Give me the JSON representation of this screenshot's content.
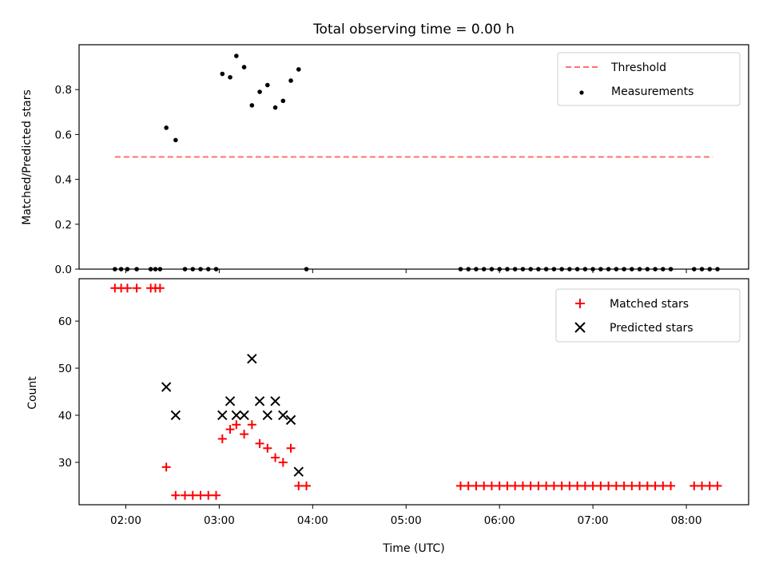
{
  "title": "Total observing time = 0.00 h",
  "xlabel": "Time (UTC)",
  "x_ticks": [
    "02:00",
    "03:00",
    "04:00",
    "05:00",
    "06:00",
    "07:00",
    "08:00"
  ],
  "chart_data": [
    {
      "type": "scatter",
      "panel": "top",
      "ylabel": "Matched/Predicted stars",
      "ylim": [
        0,
        1.0
      ],
      "y_ticks": [
        "0.0",
        "0.2",
        "0.4",
        "0.6",
        "0.8"
      ],
      "x_range": [
        "01:30",
        "08:40"
      ],
      "legend": {
        "placement": "top-right",
        "entries": [
          "Threshold",
          "Measurements"
        ]
      },
      "threshold": {
        "name": "Threshold",
        "x": [
          "01:53",
          "08:17"
        ],
        "y": 0.5,
        "color": "#ff7070",
        "style": "dashed"
      },
      "series": [
        {
          "name": "Measurements",
          "color": "#000000",
          "points": [
            [
              "01:53",
              0
            ],
            [
              "01:57",
              0
            ],
            [
              "02:01",
              0
            ],
            [
              "02:07",
              0
            ],
            [
              "02:16",
              0
            ],
            [
              "02:19",
              0
            ],
            [
              "02:22",
              0
            ],
            [
              "02:26",
              0.63
            ],
            [
              "02:32",
              0.575
            ],
            [
              "02:38",
              0
            ],
            [
              "02:43",
              0
            ],
            [
              "02:48",
              0
            ],
            [
              "02:53",
              0
            ],
            [
              "02:58",
              0
            ],
            [
              "03:02",
              0.87
            ],
            [
              "03:07",
              0.855
            ],
            [
              "03:11",
              0.95
            ],
            [
              "03:16",
              0.9
            ],
            [
              "03:21",
              0.73
            ],
            [
              "03:26",
              0.79
            ],
            [
              "03:31",
              0.82
            ],
            [
              "03:36",
              0.72
            ],
            [
              "03:41",
              0.75
            ],
            [
              "03:46",
              0.84
            ],
            [
              "03:51",
              0.89
            ],
            [
              "03:56",
              0
            ],
            [
              "05:35",
              0
            ],
            [
              "05:40",
              0
            ],
            [
              "05:45",
              0
            ],
            [
              "05:50",
              0
            ],
            [
              "05:55",
              0
            ],
            [
              "06:00",
              0
            ],
            [
              "06:05",
              0
            ],
            [
              "06:10",
              0
            ],
            [
              "06:15",
              0
            ],
            [
              "06:20",
              0
            ],
            [
              "06:25",
              0
            ],
            [
              "06:30",
              0
            ],
            [
              "06:35",
              0
            ],
            [
              "06:40",
              0
            ],
            [
              "06:45",
              0
            ],
            [
              "06:50",
              0
            ],
            [
              "06:55",
              0
            ],
            [
              "07:00",
              0
            ],
            [
              "07:05",
              0
            ],
            [
              "07:10",
              0
            ],
            [
              "07:15",
              0
            ],
            [
              "07:20",
              0
            ],
            [
              "07:25",
              0
            ],
            [
              "07:30",
              0
            ],
            [
              "07:35",
              0
            ],
            [
              "07:40",
              0
            ],
            [
              "07:45",
              0
            ],
            [
              "07:50",
              0
            ],
            [
              "08:05",
              0
            ],
            [
              "08:10",
              0
            ],
            [
              "08:15",
              0
            ],
            [
              "08:20",
              0
            ]
          ]
        }
      ]
    },
    {
      "type": "scatter",
      "panel": "bottom",
      "ylabel": "Count",
      "ylim": [
        21,
        69
      ],
      "y_ticks": [
        "30",
        "40",
        "50",
        "60"
      ],
      "x_range": [
        "01:30",
        "08:40"
      ],
      "legend": {
        "placement": "top-right",
        "entries": [
          "Matched stars",
          "Predicted stars"
        ]
      },
      "series": [
        {
          "name": "Matched stars",
          "marker": "plus",
          "color": "#ff0000",
          "points": [
            [
              "01:53",
              67
            ],
            [
              "01:57",
              67
            ],
            [
              "02:01",
              67
            ],
            [
              "02:07",
              67
            ],
            [
              "02:16",
              67
            ],
            [
              "02:19",
              67
            ],
            [
              "02:22",
              67
            ],
            [
              "02:26",
              29
            ],
            [
              "02:32",
              23
            ],
            [
              "02:38",
              23
            ],
            [
              "02:43",
              23
            ],
            [
              "02:48",
              23
            ],
            [
              "02:53",
              23
            ],
            [
              "02:58",
              23
            ],
            [
              "03:02",
              35
            ],
            [
              "03:07",
              37
            ],
            [
              "03:11",
              38
            ],
            [
              "03:16",
              36
            ],
            [
              "03:21",
              38
            ],
            [
              "03:26",
              34
            ],
            [
              "03:31",
              33
            ],
            [
              "03:36",
              31
            ],
            [
              "03:41",
              30
            ],
            [
              "03:46",
              33
            ],
            [
              "03:51",
              25
            ],
            [
              "03:56",
              25
            ],
            [
              "05:35",
              25
            ],
            [
              "05:40",
              25
            ],
            [
              "05:45",
              25
            ],
            [
              "05:50",
              25
            ],
            [
              "05:55",
              25
            ],
            [
              "06:00",
              25
            ],
            [
              "06:05",
              25
            ],
            [
              "06:10",
              25
            ],
            [
              "06:15",
              25
            ],
            [
              "06:20",
              25
            ],
            [
              "06:25",
              25
            ],
            [
              "06:30",
              25
            ],
            [
              "06:35",
              25
            ],
            [
              "06:40",
              25
            ],
            [
              "06:45",
              25
            ],
            [
              "06:50",
              25
            ],
            [
              "06:55",
              25
            ],
            [
              "07:00",
              25
            ],
            [
              "07:05",
              25
            ],
            [
              "07:10",
              25
            ],
            [
              "07:15",
              25
            ],
            [
              "07:20",
              25
            ],
            [
              "07:25",
              25
            ],
            [
              "07:30",
              25
            ],
            [
              "07:35",
              25
            ],
            [
              "07:40",
              25
            ],
            [
              "07:45",
              25
            ],
            [
              "07:50",
              25
            ],
            [
              "08:05",
              25
            ],
            [
              "08:10",
              25
            ],
            [
              "08:15",
              25
            ],
            [
              "08:20",
              25
            ]
          ]
        },
        {
          "name": "Predicted stars",
          "marker": "x",
          "color": "#000000",
          "points": [
            [
              "02:26",
              46
            ],
            [
              "02:32",
              40
            ],
            [
              "03:02",
              40
            ],
            [
              "03:07",
              43
            ],
            [
              "03:11",
              40
            ],
            [
              "03:16",
              40
            ],
            [
              "03:21",
              52
            ],
            [
              "03:26",
              43
            ],
            [
              "03:31",
              40
            ],
            [
              "03:36",
              43
            ],
            [
              "03:41",
              40
            ],
            [
              "03:46",
              39
            ],
            [
              "03:51",
              28
            ]
          ]
        }
      ]
    }
  ]
}
